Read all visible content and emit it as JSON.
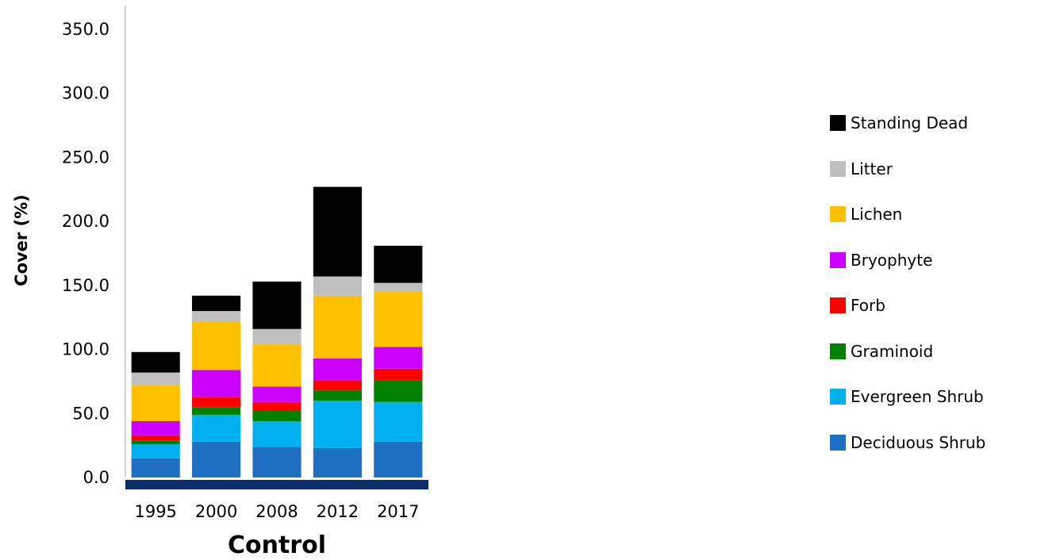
{
  "chart_data": {
    "type": "bar",
    "stacked": true,
    "categories": [
      "1995",
      "2000",
      "2008",
      "2012",
      "2017"
    ],
    "xlabel": "Control",
    "ylabel": "Cover (%)",
    "ylim": [
      0,
      350
    ],
    "yticks": [
      "0.0",
      "50.0",
      "100.0",
      "150.0",
      "200.0",
      "250.0",
      "300.0",
      "350.0"
    ],
    "ytick_values": [
      0,
      50,
      100,
      150,
      200,
      250,
      300,
      350
    ],
    "grid": false,
    "legend_position": "right",
    "series": [
      {
        "name": "Deciduous Shrub",
        "color": "#1f6fc5",
        "values": [
          15,
          28,
          24,
          23,
          28
        ]
      },
      {
        "name": "Evergreen Shrub",
        "color": "#00b0f0",
        "values": [
          11,
          21,
          20,
          37,
          31
        ]
      },
      {
        "name": "Graminoid",
        "color": "#008000",
        "values": [
          3,
          6,
          8,
          8,
          17
        ]
      },
      {
        "name": "Forb",
        "color": "#ff0000",
        "values": [
          4,
          8,
          7,
          8,
          9
        ]
      },
      {
        "name": "Bryophyte",
        "color": "#cc00ff",
        "values": [
          11,
          21,
          12,
          17,
          17
        ]
      },
      {
        "name": "Lichen",
        "color": "#ffc000",
        "values": [
          28,
          38,
          33,
          49,
          43
        ]
      },
      {
        "name": "Litter",
        "color": "#bfbfbf",
        "values": [
          10,
          8,
          12,
          15,
          7
        ]
      },
      {
        "name": "Standing Dead",
        "color": "#000000",
        "values": [
          16,
          12,
          37,
          70,
          29
        ]
      }
    ]
  }
}
